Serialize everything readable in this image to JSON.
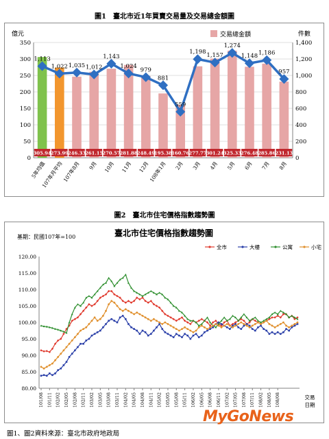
{
  "captions": {
    "fig1": "圖1　臺北市近1年買賣交易量及交易總金額圖",
    "fig2": "圖2　臺北市住宅價格指數趨勢圖",
    "source": "圖1、圖2資料來源：臺北市政府地政局"
  },
  "logo": {
    "text": "MyGoNews"
  },
  "colors": {
    "bar": "#e6a6a6",
    "bar_avg5": "#7fc24c",
    "bar_avg107": "#f2962e",
    "line": "#2f6fc2",
    "label_bg": "#c0272d"
  },
  "chart_data": [
    {
      "type": "bar",
      "title": "",
      "ylabel_left": "億元",
      "ylabel_right": "件數",
      "ylim_left": [
        0,
        350
      ],
      "ylim_right": [
        0,
        1400
      ],
      "yticks_left": [
        "0",
        "50",
        "100",
        "150",
        "200",
        "250",
        "300",
        "350"
      ],
      "yticks_right": [
        "0",
        "200",
        "400",
        "600",
        "800",
        "1,000",
        "1,200",
        "1,400"
      ],
      "legend": {
        "label": "交易總金額",
        "position": "top-right"
      },
      "categories": [
        "5年均值",
        "107年月平均",
        "107年8月",
        "9月",
        "10月",
        "11月",
        "12月",
        "108年1月",
        "2月",
        "3月",
        "4月",
        "5月",
        "6月",
        "7月",
        "8月"
      ],
      "bar_values": [
        305.94,
        273.99,
        246.33,
        261.15,
        270.57,
        281.88,
        248.49,
        195.38,
        160.76,
        277.77,
        301.24,
        325.33,
        276.48,
        285.86,
        231.13
      ],
      "bar_labels": [
        "305.94",
        "273.99",
        "246.33",
        "261.15",
        "270.57",
        "281.88",
        "248.49",
        "195.38",
        "160.76",
        "277.77",
        "301.24",
        "325.33",
        "276.48",
        "285.86",
        "231.13"
      ],
      "line_values": [
        1113,
        1022,
        1035,
        1012,
        1143,
        1024,
        979,
        881,
        559,
        1198,
        1157,
        1274,
        1148,
        1186,
        957
      ],
      "line_labels": [
        "1,113",
        "1,022",
        "1,035",
        "1,012",
        "1,143",
        "1,024",
        "979",
        "881",
        "559",
        "1,198",
        "1,157",
        "1,274",
        "1,148",
        "1,186",
        "957"
      ]
    },
    {
      "type": "line",
      "title": "臺北市住宅價格指數趨勢圖",
      "base_note": "基期：民國107年=100",
      "xlabel": "交易日期",
      "ylim": [
        80,
        120
      ],
      "yticks": [
        "80.00",
        "85.00",
        "90.00",
        "95.00",
        "100.00",
        "105.00",
        "110.00",
        "115.00",
        "120.00"
      ],
      "x_ticks": [
        "101/08",
        "101/11",
        "102/02",
        "102/05",
        "102/08",
        "102/11",
        "103/02",
        "103/05",
        "103/08",
        "103/11",
        "104/02",
        "104/05",
        "104/08",
        "104/11",
        "105/02",
        "105/05",
        "105/08",
        "105/11",
        "106/02",
        "106/05",
        "106/08",
        "106/11",
        "107/02",
        "107/05",
        "107/08",
        "107/11",
        "108/02",
        "108/05",
        "108/08"
      ],
      "series": [
        {
          "name": "全市",
          "color": "#e03a2e",
          "marker": "diamond",
          "values": [
            91.5,
            91.2,
            91.3,
            91.0,
            92.0,
            93.5,
            94.5,
            95.0,
            96.5,
            98.0,
            99.0,
            100.5,
            101.0,
            101.5,
            102.5,
            103.5,
            104.5,
            105.5,
            105.0,
            105.5,
            106.5,
            107.5,
            108.0,
            108.5,
            109.5,
            109.5,
            108.5,
            108.0,
            107.5,
            106.5,
            106.0,
            106.5,
            106.0,
            106.5,
            107.5,
            107.0,
            107.5,
            106.5,
            106.0,
            106.5,
            105.5,
            105.0,
            104.5,
            103.5,
            102.5,
            102.0,
            101.5,
            101.0,
            100.5,
            101.0,
            101.5,
            100.5,
            100.0,
            99.5,
            100.5,
            100.0,
            100.5,
            101.0,
            100.5,
            100.0,
            99.0,
            100.0,
            100.5,
            99.5,
            99.0,
            100.0,
            100.5,
            99.0,
            99.5,
            100.0,
            100.5,
            101.0,
            100.5,
            99.5,
            100.0,
            101.0,
            100.5,
            100.0,
            99.5,
            100.0,
            100.5,
            101.0,
            101.5,
            101.5,
            102.0,
            101.5,
            102.5,
            102.5,
            101.5,
            102.0,
            101.0,
            101.5
          ]
        },
        {
          "name": "大樓",
          "color": "#2a3fa8",
          "marker": "square",
          "values": [
            83.8,
            84.0,
            83.8,
            84.5,
            84.0,
            84.5,
            85.5,
            86.0,
            87.0,
            88.0,
            89.5,
            90.5,
            91.5,
            92.5,
            93.5,
            93.5,
            94.5,
            95.0,
            96.0,
            96.5,
            97.0,
            97.5,
            98.5,
            99.5,
            100.5,
            101.0,
            100.5,
            100.0,
            101.5,
            102.0,
            101.0,
            99.5,
            98.5,
            98.0,
            97.5,
            96.5,
            97.5,
            97.0,
            96.0,
            96.5,
            97.5,
            98.5,
            99.5,
            98.0,
            97.0,
            96.5,
            96.0,
            95.5,
            96.5,
            96.0,
            95.5,
            96.5,
            96.0,
            95.0,
            96.0,
            96.5,
            95.5,
            96.0,
            97.0,
            97.5,
            98.0,
            98.5,
            99.5,
            100.0,
            99.5,
            99.0,
            98.5,
            98.0,
            99.0,
            99.5,
            98.5,
            98.0,
            99.0,
            99.5,
            99.0,
            98.0,
            97.5,
            98.5,
            99.0,
            98.0,
            97.5,
            96.5,
            97.0,
            96.5,
            97.0,
            96.5,
            97.0,
            98.0,
            97.5,
            98.5,
            99.0,
            99.5
          ]
        },
        {
          "name": "公寓",
          "color": "#2f8f2f",
          "marker": "triangle",
          "values": [
            99.0,
            98.8,
            98.7,
            98.5,
            98.3,
            98.0,
            97.8,
            97.5,
            97.2,
            96.8,
            100.0,
            102.5,
            104.5,
            105.5,
            105.0,
            106.0,
            107.5,
            108.0,
            107.5,
            108.5,
            109.5,
            110.5,
            111.5,
            112.0,
            113.5,
            112.5,
            111.0,
            112.0,
            113.0,
            113.5,
            114.5,
            112.0,
            110.5,
            109.5,
            109.0,
            108.5,
            108.0,
            108.5,
            109.0,
            109.5,
            109.0,
            108.5,
            109.0,
            108.5,
            107.5,
            107.0,
            106.0,
            105.0,
            104.5,
            103.5,
            103.0,
            102.0,
            101.0,
            100.5,
            100.5,
            100.0,
            99.0,
            99.5,
            100.5,
            101.5,
            100.0,
            99.0,
            98.5,
            99.5,
            100.5,
            101.5,
            100.5,
            101.0,
            102.0,
            101.5,
            100.5,
            101.5,
            102.5,
            101.5,
            100.5,
            101.0,
            101.5,
            100.5,
            100.0,
            100.5,
            101.0,
            101.5,
            102.5,
            103.0,
            102.5,
            103.5,
            103.0,
            102.5,
            101.5,
            102.0,
            101.5,
            101.0
          ]
        },
        {
          "name": "小宅",
          "color": "#e0902e",
          "marker": "circle",
          "values": [
            86.5,
            86.0,
            86.5,
            87.0,
            87.5,
            88.5,
            89.5,
            90.5,
            91.5,
            92.5,
            93.5,
            94.5,
            95.5,
            96.5,
            97.5,
            98.0,
            98.5,
            99.5,
            100.5,
            101.5,
            100.5,
            101.0,
            102.0,
            103.5,
            105.5,
            106.5,
            106.0,
            105.0,
            104.0,
            103.5,
            104.0,
            103.5,
            103.0,
            102.5,
            103.0,
            102.5,
            102.0,
            101.5,
            101.0,
            100.5,
            101.0,
            100.5,
            100.0,
            99.5,
            100.0,
            99.5,
            99.0,
            98.5,
            98.0,
            97.5,
            98.0,
            98.5,
            98.0,
            97.5,
            97.0,
            97.5,
            98.5,
            99.0,
            98.5,
            98.0,
            98.5,
            99.0,
            99.5,
            99.0,
            98.5,
            99.0,
            99.5,
            99.0,
            98.5,
            99.0,
            99.5,
            100.0,
            99.5,
            99.0,
            98.5,
            99.0,
            99.5,
            100.0,
            99.5,
            100.0,
            100.5,
            99.5,
            99.0,
            98.5,
            99.0,
            99.5,
            100.0,
            99.0,
            98.5,
            99.0,
            99.5,
            100.0
          ]
        }
      ]
    }
  ]
}
